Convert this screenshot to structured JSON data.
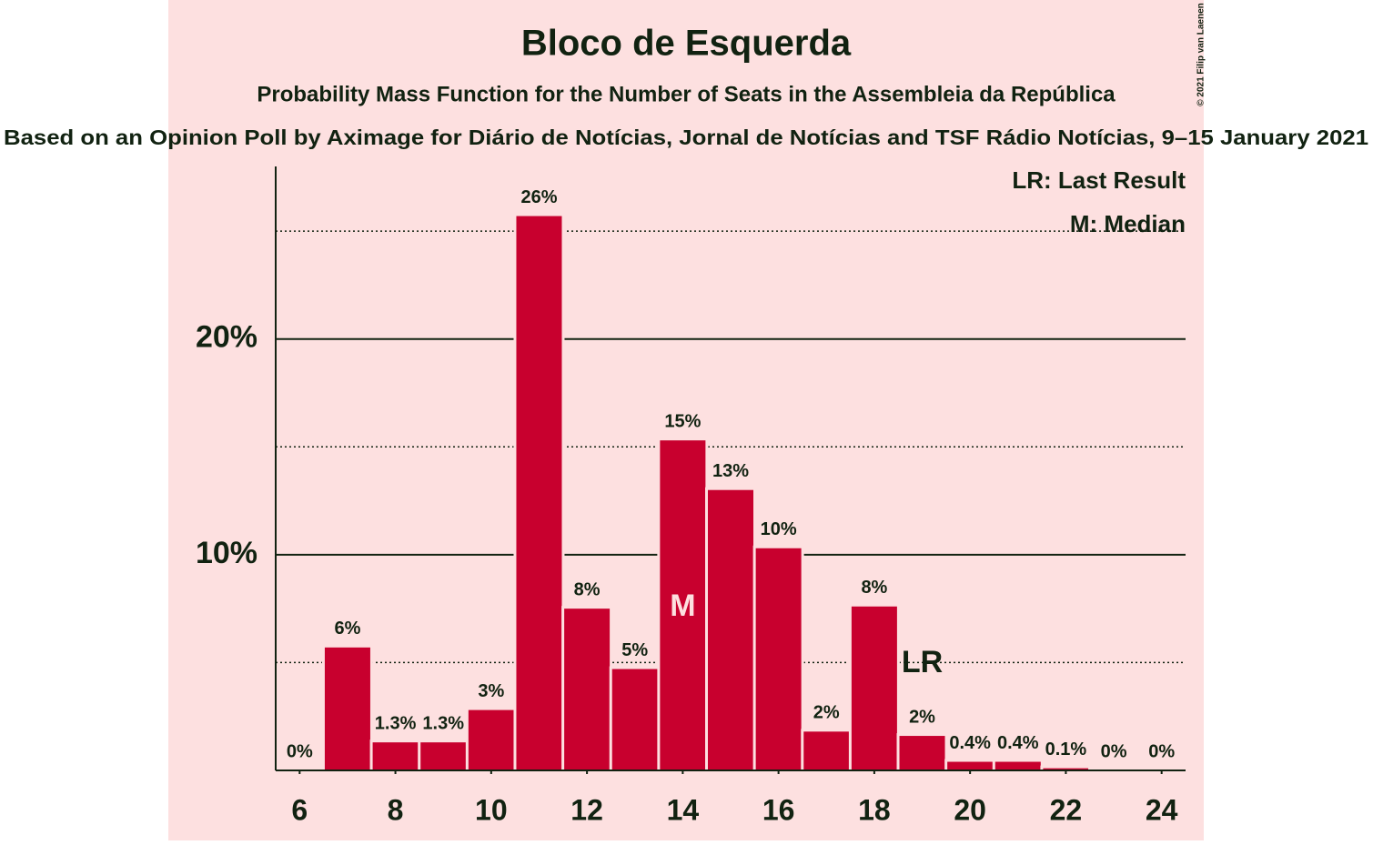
{
  "chart_data": {
    "type": "bar",
    "title": "Bloco de Esquerda",
    "subtitle": "Probability Mass Function for the Number of Seats in the Assembleia da República",
    "caption": "Based on an Opinion Poll by Aximage for Diário de Notícias, Jornal de Notícias and TSF Rádio Notícias, 9–15 January 2021",
    "copyright": "© 2021 Filip van Laenen",
    "x": [
      6,
      7,
      8,
      9,
      10,
      11,
      12,
      13,
      14,
      15,
      16,
      17,
      18,
      19,
      20,
      21,
      22,
      23,
      24
    ],
    "values": [
      0,
      5.7,
      1.3,
      1.3,
      2.8,
      25.7,
      7.5,
      4.7,
      15.3,
      13.0,
      10.3,
      1.8,
      7.6,
      1.6,
      0.4,
      0.4,
      0.1,
      0,
      0
    ],
    "value_labels": [
      "0%",
      "6%",
      "1.3%",
      "1.3%",
      "3%",
      "26%",
      "8%",
      "5%",
      "15%",
      "13%",
      "10%",
      "2%",
      "8%",
      "2%",
      "0.4%",
      "0.4%",
      "0.1%",
      "0%",
      "0%"
    ],
    "color": "#c8002e",
    "xlim": [
      5.5,
      24.5
    ],
    "xticks": [
      6,
      8,
      10,
      12,
      14,
      16,
      18,
      20,
      22,
      24
    ],
    "ylim": [
      0,
      28
    ],
    "yticks": [
      {
        "value": 10,
        "label": "10%"
      },
      {
        "value": 20,
        "label": "20%"
      }
    ],
    "minor_yticks": [
      5,
      15,
      25
    ],
    "grid": true,
    "median": {
      "x": 14,
      "label": "M"
    },
    "last_result": {
      "x": 19,
      "label": "LR"
    },
    "legend": [
      "LR: Last Result",
      "M: Median"
    ]
  }
}
